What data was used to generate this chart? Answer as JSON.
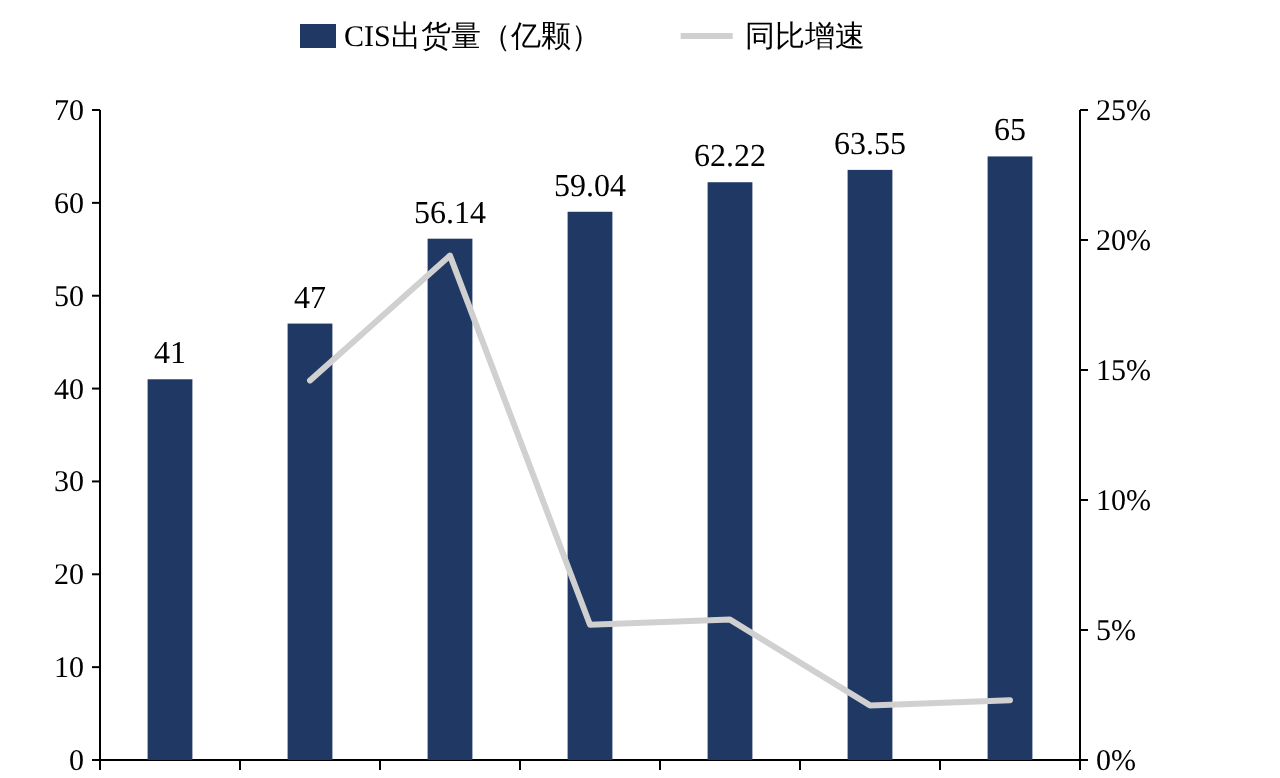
{
  "chart_data": {
    "type": "bar",
    "categories": [
      null,
      null,
      null,
      null,
      null,
      null,
      null
    ],
    "series": [
      {
        "name": "CIS出货量（亿颗）",
        "color": "#1f3864",
        "values": [
          41,
          47,
          56.14,
          59.04,
          62.22,
          63.55,
          65
        ],
        "value_labels": [
          "41",
          "47",
          "56.14",
          "59.04",
          "62.22",
          "63.55",
          "65"
        ]
      },
      {
        "name": "同比增速",
        "type": "line",
        "axis": "y2",
        "color": "#d0d0d0",
        "values": [
          null,
          14.6,
          19.4,
          5.2,
          5.4,
          2.1,
          2.3
        ]
      }
    ],
    "ylim": [
      0,
      70
    ],
    "yticks": [
      0,
      10,
      20,
      30,
      40,
      50,
      60,
      70
    ],
    "y2lim": [
      0,
      25
    ],
    "y2ticks": [
      {
        "value": 0,
        "label": "0%"
      },
      {
        "value": 5,
        "label": "5%"
      },
      {
        "value": 10,
        "label": "10%"
      },
      {
        "value": 15,
        "label": "15%"
      },
      {
        "value": 20,
        "label": "20%"
      },
      {
        "value": 25,
        "label": "25%"
      }
    ],
    "legend": "top",
    "grid": false
  }
}
